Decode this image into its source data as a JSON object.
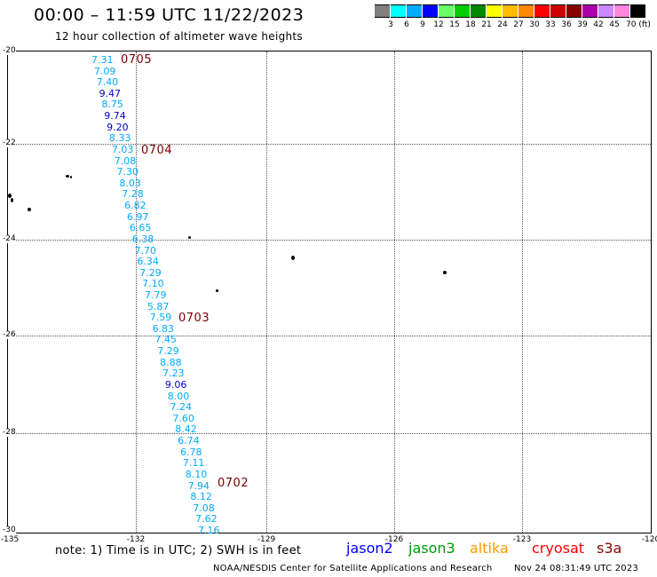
{
  "header": {
    "title": "00:00 – 11:59 UTC 11/22/2023",
    "subtitle": "12 hour collection of altimeter wave heights"
  },
  "legend": {
    "labels": [
      "3",
      "6",
      "9",
      "12",
      "15",
      "18",
      "21",
      "24",
      "27",
      "30",
      "33",
      "36",
      "39",
      "42",
      "45",
      "70 (ft)"
    ],
    "colors": [
      "#808080",
      "#00ffff",
      "#00aaff",
      "#0000ff",
      "#66ff66",
      "#00cc00",
      "#008800",
      "#ffff00",
      "#ffbb00",
      "#ff8800",
      "#ff0000",
      "#cc0000",
      "#880000",
      "#aa00aa",
      "#cc88ff",
      "#ff88dd",
      "#000000"
    ]
  },
  "axes": {
    "lat_labels": [
      "-20",
      "-22",
      "-24",
      "-26",
      "-28",
      "-30"
    ],
    "lon_labels": [
      "-135",
      "-132",
      "-129",
      "-126",
      "-123",
      "-120"
    ]
  },
  "passes": [
    {
      "id": "p0705",
      "label": "0705"
    },
    {
      "id": "p0704",
      "label": "0704"
    },
    {
      "id": "p0703",
      "label": "0703"
    },
    {
      "id": "p0702",
      "label": "0702"
    }
  ],
  "track_values": [
    {
      "v": "7.31",
      "c": "#00aaff"
    },
    {
      "v": "7.09",
      "c": "#00aaff"
    },
    {
      "v": "7.40",
      "c": "#00aaff"
    },
    {
      "v": "9.47",
      "c": "#0000cc"
    },
    {
      "v": "8.75",
      "c": "#00aaff"
    },
    {
      "v": "9.74",
      "c": "#0000cc"
    },
    {
      "v": "9.20",
      "c": "#0000cc"
    },
    {
      "v": "8.33",
      "c": "#00aaff"
    },
    {
      "v": "7.03",
      "c": "#00aaff"
    },
    {
      "v": "7.08",
      "c": "#00aaff"
    },
    {
      "v": "7.30",
      "c": "#00aaff"
    },
    {
      "v": "8.03",
      "c": "#00aaff"
    },
    {
      "v": "7.28",
      "c": "#00aaff"
    },
    {
      "v": "6.82",
      "c": "#00aaff"
    },
    {
      "v": "6.97",
      "c": "#00aaff"
    },
    {
      "v": "6.65",
      "c": "#00aaff"
    },
    {
      "v": "6.38",
      "c": "#00aaff"
    },
    {
      "v": "7.70",
      "c": "#00aaff"
    },
    {
      "v": "6.34",
      "c": "#00aaff"
    },
    {
      "v": "7.29",
      "c": "#00aaff"
    },
    {
      "v": "7.10",
      "c": "#00aaff"
    },
    {
      "v": "7.79",
      "c": "#00aaff"
    },
    {
      "v": "5.87",
      "c": "#00aaff"
    },
    {
      "v": "7.59",
      "c": "#00aaff"
    },
    {
      "v": "6.83",
      "c": "#00aaff"
    },
    {
      "v": "7.45",
      "c": "#00aaff"
    },
    {
      "v": "7.29",
      "c": "#00aaff"
    },
    {
      "v": "8.88",
      "c": "#00aaff"
    },
    {
      "v": "7.23",
      "c": "#00aaff"
    },
    {
      "v": "9.06",
      "c": "#0000cc"
    },
    {
      "v": "8.00",
      "c": "#00aaff"
    },
    {
      "v": "7.24",
      "c": "#00aaff"
    },
    {
      "v": "7.60",
      "c": "#00aaff"
    },
    {
      "v": "8.42",
      "c": "#00aaff"
    },
    {
      "v": "6.74",
      "c": "#00aaff"
    },
    {
      "v": "6.78",
      "c": "#00aaff"
    },
    {
      "v": "7.11",
      "c": "#00aaff"
    },
    {
      "v": "8.10",
      "c": "#00aaff"
    },
    {
      "v": "7.94",
      "c": "#00aaff"
    },
    {
      "v": "8.12",
      "c": "#00aaff"
    },
    {
      "v": "7.08",
      "c": "#00aaff"
    },
    {
      "v": "7.62",
      "c": "#00aaff"
    },
    {
      "v": "7.16",
      "c": "#00aaff"
    }
  ],
  "footer": {
    "note": "note: 1) Time is in UTC; 2) SWH is in feet",
    "satellites": [
      {
        "name": "jason2",
        "color": "#0000ff"
      },
      {
        "name": "jason3",
        "color": "#009900"
      },
      {
        "name": "altika",
        "color": "#ff9900"
      },
      {
        "name": "cryosat",
        "color": "#ff0000"
      },
      {
        "name": "s3a",
        "color": "#880000"
      }
    ],
    "credit": "NOAA/NESDIS Center for Satellite Applications and Research",
    "timestamp": "Nov 24 08:31:49 UTC 2023"
  }
}
